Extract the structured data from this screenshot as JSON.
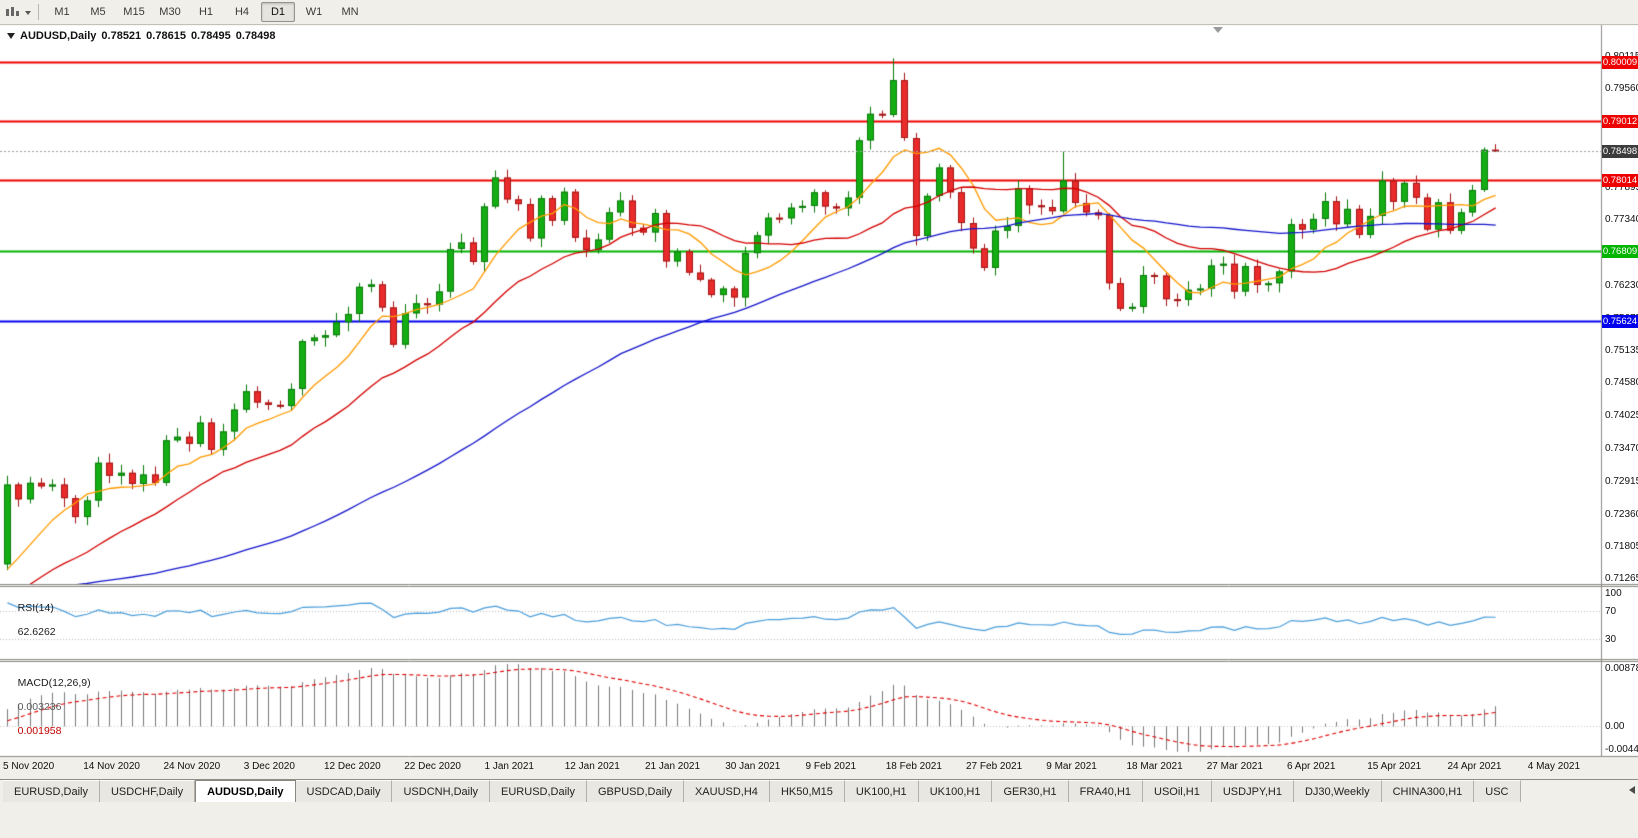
{
  "toolbar": {
    "timeframes": [
      "M1",
      "M5",
      "M15",
      "M30",
      "H1",
      "H4",
      "D1",
      "W1",
      "MN"
    ],
    "active_timeframe": "D1"
  },
  "chart": {
    "title": "AUDUSD,Daily",
    "ohlc": {
      "open": "0.78521",
      "high": "0.78615",
      "low": "0.78495",
      "close": "0.78498"
    },
    "price_scale_ticks": [
      "0.80115",
      "0.79560",
      "0.79005",
      "0.78450",
      "0.77895",
      "0.77340",
      "0.76785",
      "0.76230",
      "0.75675",
      "0.75135",
      "0.74580",
      "0.74025",
      "0.73470",
      "0.72915",
      "0.72360",
      "0.71805",
      "0.71265"
    ],
    "hlines": [
      {
        "label": "0.80009",
        "value": 0.80009,
        "color": "#EE0000"
      },
      {
        "label": "0.79012",
        "value": 0.79012,
        "color": "#EE0000"
      },
      {
        "label": "0.78014",
        "value": 0.78014,
        "color": "#EE0000"
      },
      {
        "label": "0.76809",
        "value": 0.76809,
        "color": "#00B400"
      },
      {
        "label": "0.75624",
        "value": 0.75624,
        "color": "#0000EE"
      }
    ],
    "current_price": {
      "label": "0.78498",
      "value": 0.78498,
      "bg": "#3c3c3c"
    },
    "date_labels": [
      "5 Nov 2020",
      "14 Nov 2020",
      "24 Nov 2020",
      "3 Dec 2020",
      "12 Dec 2020",
      "22 Dec 2020",
      "1 Jan 2021",
      "12 Jan 2021",
      "21 Jan 2021",
      "30 Jan 2021",
      "9 Feb 2021",
      "18 Feb 2021",
      "27 Feb 2021",
      "9 Mar 2021",
      "18 Mar 2021",
      "27 Mar 2021",
      "6 Apr 2021",
      "15 Apr 2021",
      "24 Apr 2021",
      "4 May 2021"
    ]
  },
  "rsi": {
    "title": "RSI(14)",
    "value": "62.6262",
    "scale": [
      {
        "label": "100",
        "value": 100
      },
      {
        "label": "70",
        "value": 70
      },
      {
        "label": "30",
        "value": 30
      }
    ]
  },
  "macd": {
    "title": "MACD(12,26,9)",
    "value_main": "0.003236",
    "value_signal": "0.001958",
    "scale_top": "0.008782",
    "scale_zero": "0.00",
    "scale_bottom": "-0.004451"
  },
  "tabs": {
    "items": [
      "EURUSD,Daily",
      "USDCHF,Daily",
      "AUDUSD,Daily",
      "USDCAD,Daily",
      "USDCNH,Daily",
      "EURUSD,Daily",
      "GBPUSD,Daily",
      "XAUUSD,H4",
      "HK50,M15",
      "UK100,H1",
      "UK100,H1",
      "GER30,H1",
      "FRA40,H1",
      "USOil,H1",
      "USDJPY,H1",
      "DJ30,Weekly",
      "CHINA300,H1",
      "USC"
    ],
    "active_index": 2
  },
  "chart_data": {
    "type": "candlestick",
    "symbol": "AUDUSD",
    "timeframe": "Daily",
    "price_axis": {
      "max": 0.806,
      "min": 0.712
    },
    "first_open": 0.715,
    "pre_closes": [
      0.715,
      0.7165,
      0.718,
      0.7172,
      0.716,
      0.7148,
      0.7155,
      0.7162,
      0.717,
      0.7158,
      0.7145,
      0.713,
      0.7142,
      0.715,
      0.7163,
      0.7155,
      0.714,
      0.7128,
      0.7115,
      0.712,
      0.7135,
      0.7128,
      0.711,
      0.7098,
      0.7085,
      0.7092,
      0.7105,
      0.7118,
      0.7108,
      0.7095,
      0.708,
      0.7065,
      0.7072,
      0.706,
      0.7045,
      0.7038,
      0.7052,
      0.7068,
      0.708,
      0.7072,
      0.706,
      0.7048,
      0.7035,
      0.7028,
      0.704,
      0.7055,
      0.7048,
      0.7062,
      0.7075,
      0.7068,
      0.7082,
      0.7095,
      0.7088,
      0.7102,
      0.7115,
      0.7108,
      0.712,
      0.7135,
      0.7128,
      0.7142
    ],
    "closes": [
      0.7285,
      0.726,
      0.7288,
      0.7282,
      0.7285,
      0.7262,
      0.723,
      0.7258,
      0.7322,
      0.73,
      0.7305,
      0.7286,
      0.7302,
      0.7288,
      0.736,
      0.7366,
      0.7354,
      0.739,
      0.7344,
      0.7375,
      0.7412,
      0.7443,
      0.7424,
      0.742,
      0.7418,
      0.7447,
      0.7528,
      0.7534,
      0.7538,
      0.756,
      0.7574,
      0.762,
      0.7624,
      0.7585,
      0.7522,
      0.7575,
      0.7592,
      0.759,
      0.7612,
      0.7684,
      0.7695,
      0.7662,
      0.7756,
      0.7805,
      0.7768,
      0.776,
      0.7702,
      0.777,
      0.7732,
      0.7781,
      0.7703,
      0.7682,
      0.77,
      0.7746,
      0.7766,
      0.772,
      0.7712,
      0.7745,
      0.7663,
      0.768,
      0.7644,
      0.7632,
      0.7606,
      0.7617,
      0.7602,
      0.7677,
      0.7707,
      0.7737,
      0.7736,
      0.7754,
      0.7757,
      0.778,
      0.7756,
      0.7753,
      0.7771,
      0.7868,
      0.7913,
      0.7911,
      0.797,
      0.7872,
      0.7706,
      0.7774,
      0.7822,
      0.778,
      0.7728,
      0.7685,
      0.7652,
      0.7715,
      0.7723,
      0.7787,
      0.7758,
      0.7755,
      0.7748,
      0.78,
      0.7762,
      0.7746,
      0.7741,
      0.7626,
      0.7583,
      0.7586,
      0.764,
      0.7639,
      0.7599,
      0.7598,
      0.7615,
      0.7617,
      0.7656,
      0.7659,
      0.7612,
      0.7655,
      0.7623,
      0.7626,
      0.7646,
      0.7726,
      0.7717,
      0.7735,
      0.7765,
      0.7726,
      0.7752,
      0.7708,
      0.774,
      0.78,
      0.7764,
      0.7796,
      0.7771,
      0.7717,
      0.7763,
      0.7715,
      0.7746,
      0.7784,
      0.78521,
      0.78498
    ],
    "wick_overrides": {
      "0": {
        "low": 0.714
      },
      "78": {
        "high": 0.8007
      },
      "93": {
        "high": 0.7849
      },
      "130": {
        "high": 0.7856
      },
      "131": {
        "high": 0.78615,
        "low": 0.78495
      }
    },
    "moving_averages": [
      {
        "name": "fast",
        "period": 8,
        "color": "#FF9B00"
      },
      {
        "name": "mid",
        "period": 20,
        "color": "#D40000"
      },
      {
        "name": "slow",
        "period": 55,
        "color": "#1414CC"
      }
    ],
    "indicators": {
      "rsi": {
        "period": 14,
        "last": 62.6262,
        "levels": [
          70,
          30
        ],
        "color": "#4A9EDB"
      },
      "macd": {
        "fast": 12,
        "slow": 26,
        "signal": 9,
        "last_main": 0.003236,
        "last_signal": 0.001958,
        "hist_color": "#7A7A7A",
        "signal_color": "#E00000"
      }
    },
    "colors": {
      "bull": "#14AE14",
      "bear": "#EA2B2B",
      "bull_border": "#0A7A0A",
      "bear_border": "#A31515",
      "pane_bg": "#FFFFFF",
      "chrome_bg": "#F0EFE9",
      "bid_line": "#A0A0A0"
    }
  }
}
